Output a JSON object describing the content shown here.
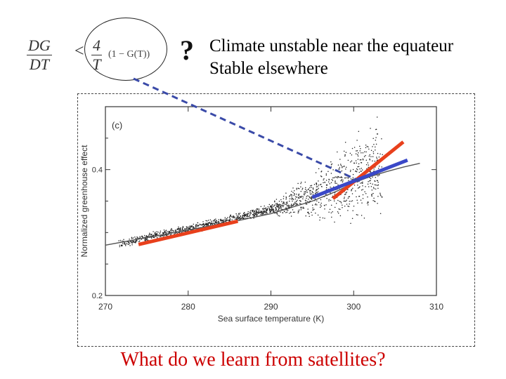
{
  "formula": {
    "lhs_num": "DG",
    "lhs_den": "DT",
    "operator": "<",
    "rhs_num": "4",
    "rhs_den": "T",
    "rhs_term": "(1 − G(T))"
  },
  "question_mark": "?",
  "statement": {
    "line1": "Climate unstable  near the equateur",
    "line2": "Stable elsewhere"
  },
  "question": "What do we learn from satellites?",
  "colors": {
    "question_text": "#cc0000",
    "connector": "#3a4aa8",
    "fit_red": "#e8401c",
    "fit_blue": "#3a48c8",
    "points": "#222222"
  },
  "chart_data": {
    "type": "scatter",
    "panel_label": "(c)",
    "xlabel": "Sea surface temperature (K)",
    "ylabel": "Normalized greenhouse effect",
    "xlim": [
      270,
      310
    ],
    "ylim": [
      0.2,
      0.5
    ],
    "x_ticks": [
      "270",
      "280",
      "290",
      "300",
      "310"
    ],
    "y_ticks": [
      "0.2",
      "0.4"
    ],
    "series": [
      {
        "x": [
          272,
          276,
          280,
          284,
          288,
          292,
          296,
          298,
          300,
          301,
          302,
          303
        ],
        "y": [
          0.283,
          0.295,
          0.305,
          0.317,
          0.33,
          0.345,
          0.362,
          0.374,
          0.39,
          0.395,
          0.397,
          0.395
        ]
      }
    ],
    "fit_lines": [
      {
        "x": [
          274,
          286
        ],
        "y": [
          0.281,
          0.318
        ],
        "color": "#e8401c"
      },
      {
        "x": [
          297.5,
          306
        ],
        "y": [
          0.354,
          0.444
        ],
        "color": "#e8401c"
      },
      {
        "x": [
          295,
          306.5
        ],
        "y": [
          0.356,
          0.415
        ],
        "color": "#3a48c8"
      }
    ],
    "model_curve": {
      "x": [
        270,
        275,
        280,
        285,
        290,
        295,
        298,
        300,
        302,
        304,
        306,
        308
      ],
      "y": [
        0.28,
        0.292,
        0.304,
        0.316,
        0.33,
        0.35,
        0.366,
        0.379,
        0.389,
        0.397,
        0.404,
        0.41
      ]
    }
  }
}
